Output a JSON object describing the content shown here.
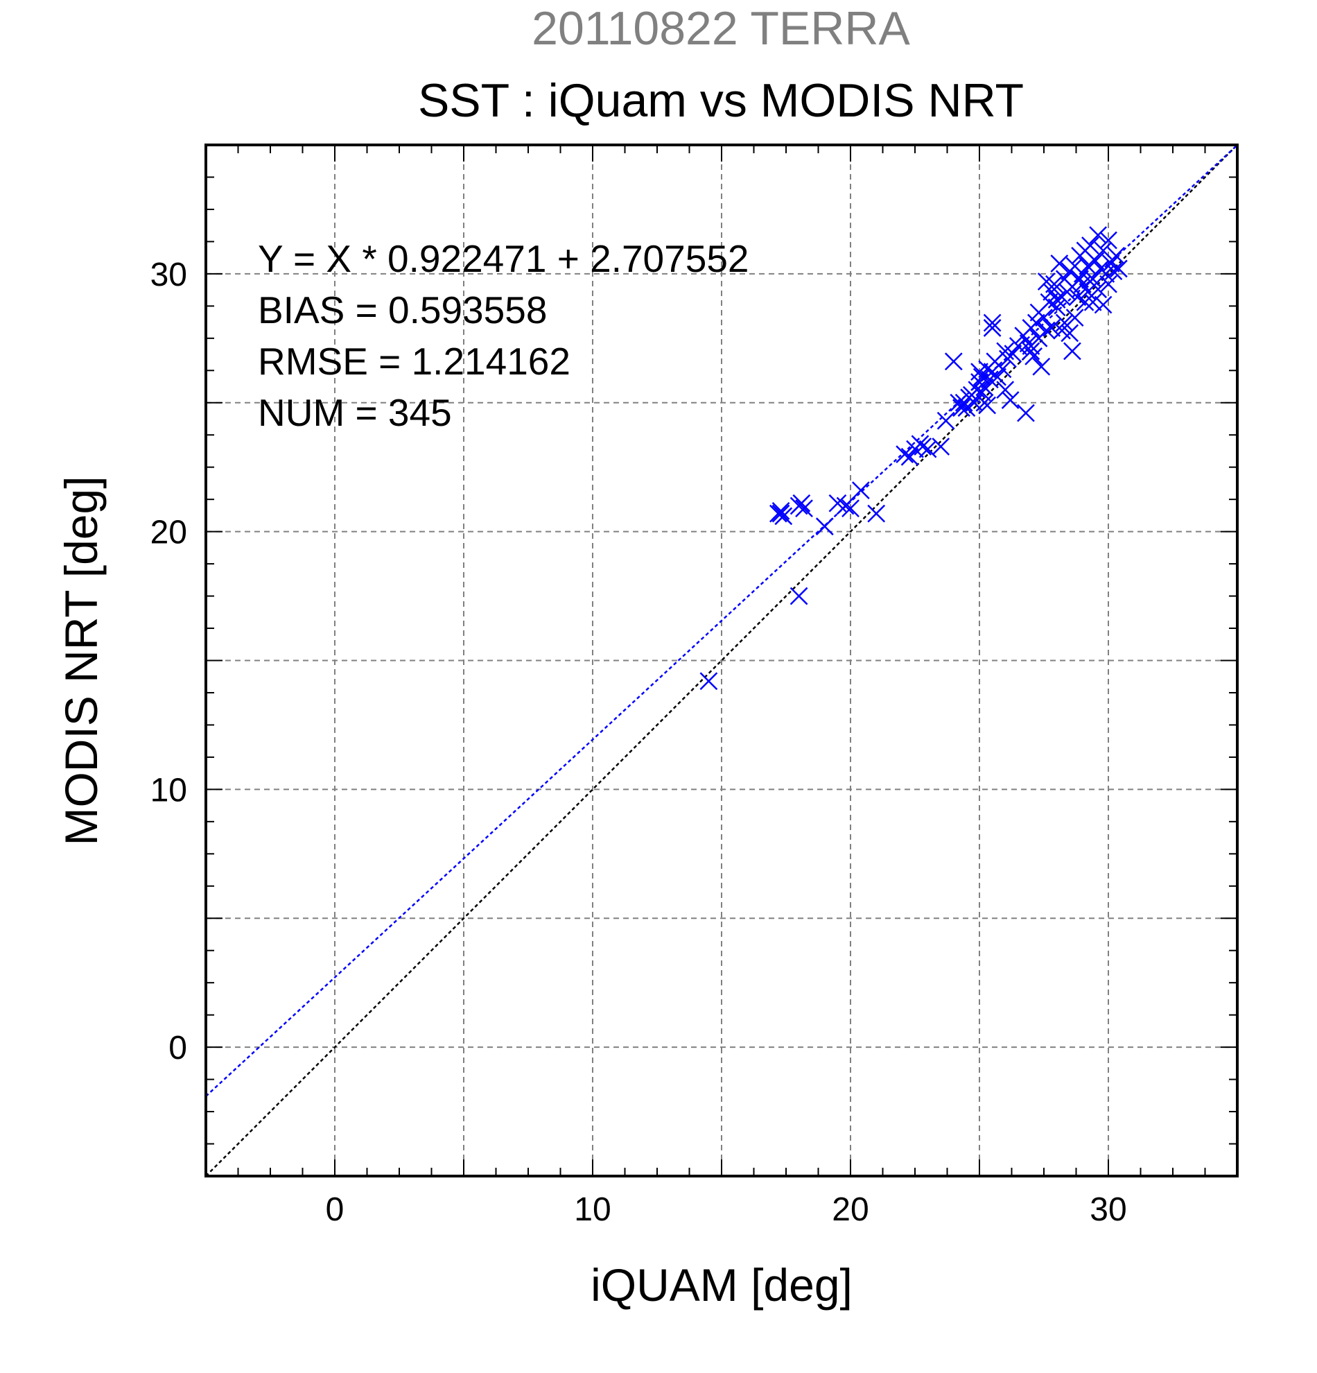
{
  "chart_data": {
    "type": "scatter",
    "title": "20110822 TERRA",
    "subtitle": "SST : iQuam vs MODIS NRT",
    "xlabel": "iQUAM [deg]",
    "ylabel": "MODIS NRT [deg]",
    "xlim": [
      -5,
      35
    ],
    "ylim": [
      -5,
      35
    ],
    "xticks": [
      0,
      10,
      20,
      30
    ],
    "yticks": [
      0,
      10,
      20,
      30
    ],
    "grid": true,
    "annotations": [
      "Y = X * 0.922471 + 2.707552",
      "BIAS = 0.593558",
      "RMSE = 1.214162",
      "NUM = 345"
    ],
    "fit_line": {
      "slope": 0.922471,
      "intercept": 2.707552,
      "color": "#0000ff"
    },
    "identity_line": {
      "slope": 1,
      "intercept": 0,
      "color": "#000000"
    },
    "marker_color": "#0000ff",
    "marker": "x",
    "points": [
      [
        14.5,
        14.2
      ],
      [
        17.2,
        20.7
      ],
      [
        17.3,
        20.8
      ],
      [
        17.4,
        20.6
      ],
      [
        17.3,
        20.7
      ],
      [
        18.0,
        17.5
      ],
      [
        18.0,
        21.0
      ],
      [
        18.1,
        21.1
      ],
      [
        18.2,
        20.9
      ],
      [
        19.0,
        20.2
      ],
      [
        19.5,
        21.1
      ],
      [
        19.8,
        21.0
      ],
      [
        20.0,
        20.9
      ],
      [
        20.4,
        21.6
      ],
      [
        21.0,
        20.7
      ],
      [
        22.1,
        23.0
      ],
      [
        22.3,
        22.9
      ],
      [
        22.5,
        23.2
      ],
      [
        22.7,
        23.4
      ],
      [
        22.8,
        23.3
      ],
      [
        23.0,
        23.2
      ],
      [
        23.5,
        23.3
      ],
      [
        23.7,
        24.3
      ],
      [
        24.0,
        26.6
      ],
      [
        24.2,
        25.0
      ],
      [
        24.3,
        24.8
      ],
      [
        24.4,
        25.0
      ],
      [
        24.5,
        24.8
      ],
      [
        24.6,
        25.2
      ],
      [
        24.7,
        25.3
      ],
      [
        24.8,
        25.0
      ],
      [
        24.9,
        25.5
      ],
      [
        25.0,
        26.2
      ],
      [
        25.0,
        25.8
      ],
      [
        25.1,
        25.4
      ],
      [
        25.1,
        26.0
      ],
      [
        25.2,
        25.0
      ],
      [
        25.2,
        25.6
      ],
      [
        25.3,
        26.3
      ],
      [
        25.3,
        24.9
      ],
      [
        25.4,
        25.9
      ],
      [
        25.5,
        27.9
      ],
      [
        25.5,
        28.1
      ],
      [
        25.5,
        26.2
      ],
      [
        25.6,
        26.6
      ],
      [
        25.7,
        26.0
      ],
      [
        25.9,
        26.3
      ],
      [
        26.0,
        25.5
      ],
      [
        26.1,
        26.7
      ],
      [
        26.2,
        25.1
      ],
      [
        26.3,
        26.9
      ],
      [
        26.5,
        27.2
      ],
      [
        26.7,
        27.6
      ],
      [
        26.8,
        24.6
      ],
      [
        26.9,
        27.3
      ],
      [
        27.0,
        27.2
      ],
      [
        27.0,
        27.9
      ],
      [
        27.1,
        26.8
      ],
      [
        27.2,
        28.1
      ],
      [
        27.3,
        27.5
      ],
      [
        27.3,
        28.5
      ],
      [
        27.4,
        26.4
      ],
      [
        27.5,
        28.3
      ],
      [
        27.6,
        27.8
      ],
      [
        27.7,
        28.9
      ],
      [
        27.8,
        29.3
      ],
      [
        27.8,
        27.9
      ],
      [
        27.9,
        29.6
      ],
      [
        28.0,
        28.7
      ],
      [
        28.0,
        29.0
      ],
      [
        28.1,
        30.4
      ],
      [
        28.2,
        29.1
      ],
      [
        28.2,
        27.8
      ],
      [
        28.3,
        29.8
      ],
      [
        28.4,
        29.3
      ],
      [
        28.5,
        30.1
      ],
      [
        28.5,
        27.7
      ],
      [
        28.6,
        29.5
      ],
      [
        28.7,
        28.3
      ],
      [
        28.7,
        30.3
      ],
      [
        28.8,
        29.1
      ],
      [
        28.9,
        30.7
      ],
      [
        29.0,
        29.6
      ],
      [
        29.0,
        30.0
      ],
      [
        29.1,
        30.9
      ],
      [
        29.2,
        29.3
      ],
      [
        29.2,
        30.3
      ],
      [
        29.3,
        31.1
      ],
      [
        29.4,
        29.8
      ],
      [
        29.4,
        28.9
      ],
      [
        29.5,
        30.5
      ],
      [
        29.6,
        31.5
      ],
      [
        29.6,
        29.4
      ],
      [
        29.7,
        30.2
      ],
      [
        29.8,
        30.9
      ],
      [
        29.8,
        28.8
      ],
      [
        29.9,
        30.0
      ],
      [
        30.0,
        31.3
      ],
      [
        30.0,
        29.6
      ],
      [
        30.1,
        30.4
      ],
      [
        30.2,
        30.1
      ],
      [
        30.3,
        30.7
      ],
      [
        27.0,
        27.0
      ],
      [
        28.3,
        28.1
      ],
      [
        28.6,
        27.0
      ],
      [
        26.0,
        27.0
      ],
      [
        29.1,
        28.9
      ],
      [
        28.9,
        29.8
      ],
      [
        27.6,
        29.7
      ],
      [
        30.4,
        30.2
      ]
    ]
  }
}
